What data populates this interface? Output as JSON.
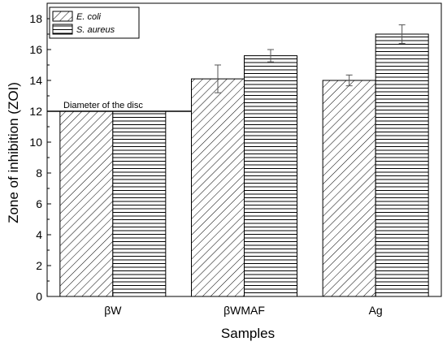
{
  "chart_data": {
    "type": "bar",
    "title": "",
    "xlabel": "Samples",
    "ylabel": "Zone of inhibition (ZOI)",
    "ylim": [
      0,
      19
    ],
    "yticks": [
      0,
      2,
      4,
      6,
      8,
      10,
      12,
      14,
      16,
      18
    ],
    "categories": [
      "βW",
      "βWMAF",
      "Ag"
    ],
    "series": [
      {
        "name": "E. coli",
        "values": [
          12,
          14.1,
          14.0
        ],
        "errors": [
          0,
          0.9,
          0.35
        ],
        "hatch": "diagonal"
      },
      {
        "name": "S. aureus",
        "values": [
          12,
          15.6,
          17.0
        ],
        "errors": [
          0,
          0.4,
          0.6
        ],
        "hatch": "horizontal"
      }
    ],
    "reference_line": {
      "value": 12,
      "label": "Diameter of the disc"
    },
    "legend_position": "top-left",
    "grid": false
  }
}
